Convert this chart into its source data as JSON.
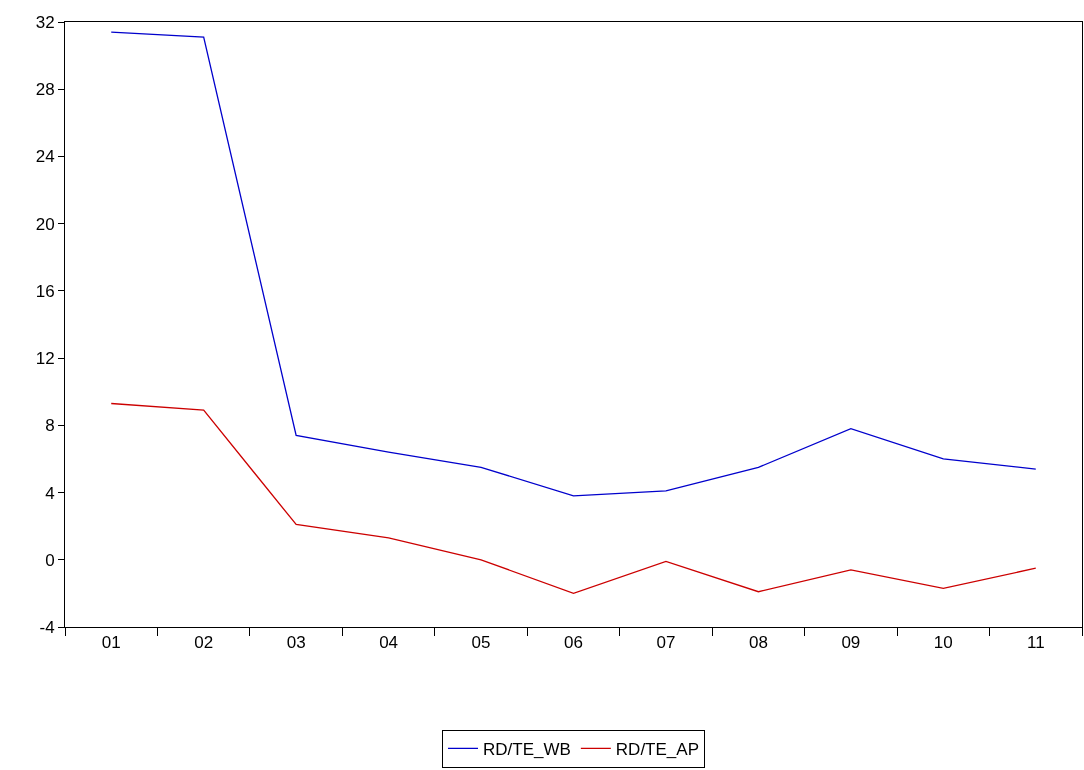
{
  "chart_data": {
    "type": "line",
    "categories": [
      "01",
      "02",
      "03",
      "04",
      "05",
      "06",
      "07",
      "08",
      "09",
      "10",
      "11"
    ],
    "series": [
      {
        "name": "RD/TE_WB",
        "color": "#0000cc",
        "values": [
          31.4,
          31.1,
          7.4,
          6.4,
          5.5,
          3.8,
          4.1,
          5.5,
          7.8,
          6.0,
          5.4
        ]
      },
      {
        "name": "RD/TE_AP",
        "color": "#cc0000",
        "values": [
          9.3,
          8.9,
          2.1,
          1.3,
          0.0,
          -2.0,
          -0.1,
          -1.9,
          -0.6,
          -1.7,
          -0.5
        ]
      }
    ],
    "ylim": [
      -4,
      32
    ],
    "yticks": [
      -4,
      0,
      4,
      8,
      12,
      16,
      20,
      24,
      28,
      32
    ],
    "grid": false,
    "legend": "bottom",
    "marker": "none",
    "line_style": "solid"
  }
}
